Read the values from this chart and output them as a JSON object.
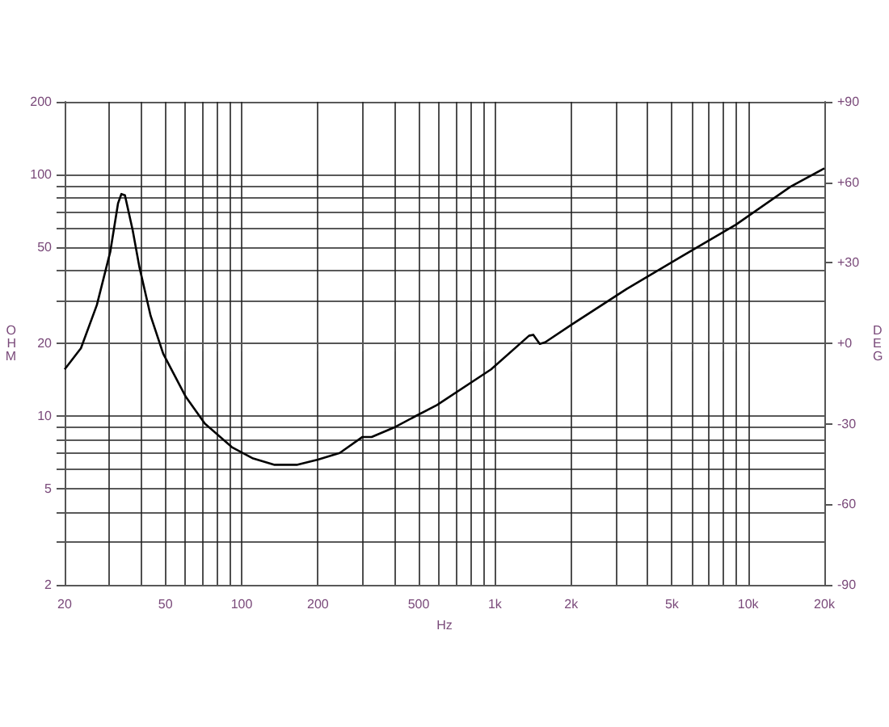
{
  "chart_data": {
    "type": "line",
    "xlabel": "Hz",
    "ylabel": "OHM",
    "y2label": "DEG",
    "log": "xy",
    "grid": true,
    "marker": "none",
    "line_style": "solid",
    "xlim": [
      20,
      20000
    ],
    "ylim": [
      2,
      200
    ],
    "y2lim": [
      -90,
      90
    ],
    "xticks": [
      20,
      {
        "value": 30,
        "label": null
      },
      {
        "value": 40,
        "label": null
      },
      50,
      {
        "value": 60,
        "label": null
      },
      {
        "value": 70,
        "label": null
      },
      {
        "value": 80,
        "label": null
      },
      {
        "value": 90,
        "label": null
      },
      100,
      200,
      {
        "value": 300,
        "label": null
      },
      {
        "value": 400,
        "label": null
      },
      500,
      {
        "value": 600,
        "label": null
      },
      {
        "value": 700,
        "label": null
      },
      {
        "value": 800,
        "label": null
      },
      {
        "value": 900,
        "label": null
      },
      {
        "value": 1000,
        "label": "1k"
      },
      {
        "value": 2000,
        "label": "2k"
      },
      {
        "value": 3000,
        "label": null
      },
      {
        "value": 4000,
        "label": null
      },
      {
        "value": 5000,
        "label": "5k"
      },
      {
        "value": 6000,
        "label": null
      },
      {
        "value": 7000,
        "label": null
      },
      {
        "value": 8000,
        "label": null
      },
      {
        "value": 9000,
        "label": null
      },
      {
        "value": 10000,
        "label": "10k"
      },
      {
        "value": 20000,
        "label": "20k"
      }
    ],
    "yticks": [
      2,
      {
        "value": 3,
        "label": null
      },
      {
        "value": 4,
        "label": null
      },
      5,
      {
        "value": 6,
        "label": null
      },
      {
        "value": 7,
        "label": null
      },
      {
        "value": 8,
        "label": null
      },
      {
        "value": 9,
        "label": null
      },
      10,
      20,
      {
        "value": 30,
        "label": null
      },
      {
        "value": 40,
        "label": null
      },
      50,
      {
        "value": 60,
        "label": null
      },
      {
        "value": 70,
        "label": null
      },
      {
        "value": 80,
        "label": null
      },
      {
        "value": 90,
        "label": null
      },
      100,
      200
    ],
    "y2ticks": [
      {
        "value": -90,
        "label": "-90"
      },
      {
        "value": -60,
        "label": "-60"
      },
      {
        "value": -30,
        "label": "-30"
      },
      {
        "value": 0,
        "label": "+0"
      },
      {
        "value": 30,
        "label": "+30"
      },
      {
        "value": 60,
        "label": "+60"
      },
      {
        "value": 90,
        "label": "+90"
      }
    ],
    "series": [
      {
        "color": "#000000",
        "x": [
          20,
          23.2,
          26.8,
          30.3,
          32.5,
          33.5,
          34.6,
          37.1,
          39.5,
          43.7,
          49,
          60.2,
          71.6,
          91.5,
          111,
          135,
          165,
          200,
          244,
          300,
          326,
          398,
          487,
          591,
          966,
          1364,
          1418,
          1504,
          1579,
          2020,
          3318,
          5450,
          8950,
          14700,
          20000
        ],
        "values": [
          15.6,
          19.1,
          28.8,
          48,
          76,
          83,
          82,
          59,
          41.2,
          26,
          18.1,
          12,
          9.3,
          7.43,
          6.67,
          6.28,
          6.28,
          6.6,
          7.03,
          8.19,
          8.19,
          8.94,
          10,
          11.1,
          15.6,
          21.5,
          21.7,
          19.9,
          20.2,
          24,
          33.6,
          45.7,
          62,
          89,
          106
        ]
      }
    ]
  }
}
